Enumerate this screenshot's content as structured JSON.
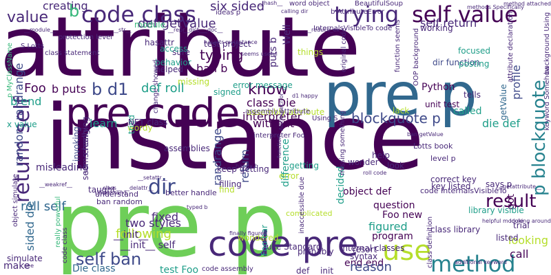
{
  "palette": {
    "purple": "#440154",
    "indigo": "#482878",
    "blue": "#3e4989",
    "slate": "#31688e",
    "teal": "#26828e",
    "aqua": "#1f9e89",
    "green": "#35b779",
    "lime": "#6ece58",
    "yellow": "#b5de2b"
  },
  "words": [
    {
      "text": "attribute",
      "color": "purple"
    },
    {
      "text": "instance",
      "color": "purple"
    },
    {
      "text": "pre p",
      "color": "lime"
    },
    {
      "text": "pre code",
      "color": "purple"
    },
    {
      "text": "pre p",
      "color": "slate"
    },
    {
      "text": "code class",
      "color": "indigo"
    },
    {
      "text": "self value",
      "color": "purple"
    },
    {
      "text": "trying",
      "color": "indigo"
    },
    {
      "text": "code pre",
      "color": "indigo"
    },
    {
      "text": "method",
      "color": "teal"
    },
    {
      "text": "use",
      "color": "yellow"
    },
    {
      "text": "p blockquote",
      "color": "teal"
    },
    {
      "text": "return self",
      "color": "indigo"
    },
    {
      "text": "dir",
      "color": "blue"
    },
    {
      "text": "result",
      "color": "purple"
    },
    {
      "text": "know",
      "color": "purple"
    },
    {
      "text": "self ban",
      "color": "blue"
    },
    {
      "text": "b d1",
      "color": "blue"
    },
    {
      "text": "def roll",
      "color": "aqua"
    },
    {
      "text": "six sided",
      "color": "indigo"
    },
    {
      "text": "value",
      "color": "indigo"
    },
    {
      "text": "creating",
      "color": "indigo"
    },
    {
      "text": "b",
      "color": "green"
    },
    {
      "text": "def getValue",
      "color": "indigo"
    },
    {
      "text": "typing",
      "color": "purple"
    },
    {
      "text": "ban b",
      "color": "purple"
    },
    {
      "text": "self return",
      "color": "indigo"
    },
    {
      "text": "Foo",
      "color": "purple"
    },
    {
      "text": "b puts",
      "color": "purple"
    },
    {
      "text": "b end",
      "color": "aqua"
    },
    {
      "text": "class Die",
      "color": "purple"
    },
    {
      "text": "blockquote p",
      "color": "blue"
    },
    {
      "text": "interpreter",
      "color": "purple"
    },
    {
      "text": "learn",
      "color": "aqua"
    },
    {
      "text": "without",
      "color": "purple"
    },
    {
      "text": "random randrange",
      "color": "blue"
    },
    {
      "text": "randrange",
      "color": "blue"
    },
    {
      "text": "return",
      "color": "blue"
    },
    {
      "text": "difference",
      "color": "aqua"
    },
    {
      "text": "roll self",
      "color": "slate"
    },
    {
      "text": "sided die",
      "color": "slate"
    },
    {
      "text": "fixed",
      "color": "indigo"
    },
    {
      "text": "following",
      "color": "yellow"
    },
    {
      "text": "two styles",
      "color": "indigo"
    },
    {
      "text": "question",
      "color": "purple"
    },
    {
      "text": "Foo new",
      "color": "purple"
    },
    {
      "text": "figured",
      "color": "aqua"
    },
    {
      "text": "program",
      "color": "purple"
    },
    {
      "text": "looking",
      "color": "yellow"
    },
    {
      "text": "call",
      "color": "purple"
    },
    {
      "text": "end end",
      "color": "purple"
    },
    {
      "text": "reason",
      "color": "blue"
    },
    {
      "text": "Die class",
      "color": "slate"
    },
    {
      "text": "test Foo",
      "color": "aqua"
    },
    {
      "text": "make",
      "color": "indigo"
    },
    {
      "text": "__init__ self",
      "color": "indigo"
    },
    {
      "text": "object def",
      "color": "purple"
    },
    {
      "text": "code InternalsVisibleTo",
      "color": "indigo"
    },
    {
      "text": "got",
      "color": "purple"
    },
    {
      "text": "profile",
      "color": "blue"
    },
    {
      "text": "Python",
      "color": "purple"
    },
    {
      "text": "unit test",
      "color": "purple"
    },
    {
      "text": "called",
      "color": "aqua"
    },
    {
      "text": "die def",
      "color": "aqua"
    },
    {
      "text": "test project",
      "color": "indigo"
    },
    {
      "text": "getValue",
      "color": "slate"
    },
    {
      "text": "dir function",
      "color": "blue"
    },
    {
      "text": "focused",
      "color": "aqua"
    },
    {
      "text": "posting",
      "color": "aqua"
    },
    {
      "text": "puts b",
      "color": "indigo"
    },
    {
      "text": "Well",
      "color": "indigo"
    },
    {
      "text": "sure",
      "color": "indigo"
    },
    {
      "text": "helped",
      "color": "indigo"
    },
    {
      "text": "behavior",
      "color": "aqua"
    },
    {
      "text": "access",
      "color": "aqua"
    },
    {
      "text": "module",
      "color": "green"
    },
    {
      "text": "hasattr",
      "color": "indigo"
    },
    {
      "text": "missing",
      "color": "yellow"
    },
    {
      "text": "error message",
      "color": "aqua"
    },
    {
      "text": "signed",
      "color": "aqua"
    },
    {
      "text": "assembly attribute",
      "color": "yellow"
    },
    {
      "text": "assemblies",
      "color": "indigo"
    },
    {
      "text": "keep getting",
      "color": "indigo"
    },
    {
      "text": "complicated",
      "color": "yellow"
    },
    {
      "text": "decided",
      "color": "aqua"
    },
    {
      "text": "getting",
      "color": "aqua"
    },
    {
      "text": "wonder",
      "color": "indigo"
    },
    {
      "text": "understand",
      "color": "indigo"
    },
    {
      "text": "ban random",
      "color": "indigo"
    },
    {
      "text": "better handle",
      "color": "indigo"
    },
    {
      "text": "wondered",
      "color": "yellow"
    },
    {
      "text": "use Standard",
      "color": "indigo"
    },
    {
      "text": "internal classes",
      "color": "indigo"
    },
    {
      "text": "syntax",
      "color": "indigo"
    },
    {
      "text": "class library",
      "color": "indigo"
    },
    {
      "text": "library visible",
      "color": "aqua"
    },
    {
      "text": "Lotts book",
      "color": "indigo"
    },
    {
      "text": "level p",
      "color": "indigo"
    },
    {
      "text": "correct key",
      "color": "indigo"
    },
    {
      "text": "key listed",
      "color": "indigo"
    },
    {
      "text": "says p",
      "color": "indigo"
    },
    {
      "text": "misleading",
      "color": "indigo"
    },
    {
      "text": "invoking",
      "color": "blue"
    },
    {
      "text": "changing",
      "color": "indigo"
    },
    {
      "text": "taught",
      "color": "indigo"
    },
    {
      "text": "simulate",
      "color": "indigo"
    },
    {
      "text": "wordy",
      "color": "yellow"
    },
    {
      "text": "tried",
      "color": "aqua"
    },
    {
      "text": "seems really",
      "color": "indigo"
    },
    {
      "text": "x value",
      "color": "aqua"
    },
    {
      "text": ".NET class",
      "color": "indigo"
    },
    {
      "text": "probably",
      "color": "indigo"
    },
    {
      "text": "trial",
      "color": "indigo"
    },
    {
      "text": "listed",
      "color": "indigo"
    },
    {
      "text": "things",
      "color": "yellow"
    },
    {
      "text": "working",
      "color": "indigo"
    },
    {
      "text": "lack",
      "color": "yellow"
    },
    {
      "text": "tells",
      "color": "indigo"
    },
    {
      "text": "find",
      "color": "yellow"
    },
    {
      "text": "filling",
      "color": "indigo"
    },
    {
      "text": "error",
      "color": "yellow"
    },
    {
      "text": "help",
      "color": "indigo"
    },
    {
      "text": "look",
      "color": "indigo"
    },
    {
      "text": "resort",
      "color": "indigo"
    },
    {
      "text": "ideas p",
      "color": "indigo"
    },
    {
      "text": "class statement",
      "color": "indigo"
    },
    {
      "text": "protection level",
      "color": "indigo"
    },
    {
      "text": "S Lotts",
      "color": "indigo"
    },
    {
      "text": "word object",
      "color": "indigo"
    },
    {
      "text": "BeautifulSoup",
      "color": "indigo"
    },
    {
      "text": "b AttributeError",
      "color": "indigo"
    },
    {
      "text": "InternalsVisibleTo code",
      "color": "indigo"
    },
    {
      "text": "original code",
      "color": "indigo"
    },
    {
      "text": "OOP background",
      "color": "indigo"
    },
    {
      "text": "attribute declaration",
      "color": "indigo"
    },
    {
      "text": "function seems",
      "color": "indigo"
    },
    {
      "text": "Using S",
      "color": "indigo"
    },
    {
      "text": "interpreter Foo",
      "color": "indigo"
    },
    {
      "text": "assembly attribute",
      "color": "indigo"
    },
    {
      "text": "missing something",
      "color": "indigo"
    },
    {
      "text": "Foo bar",
      "color": "aqua"
    },
    {
      "text": "inaccessible due",
      "color": "indigo"
    },
    {
      "text": "class definition",
      "color": "indigo"
    },
    {
      "text": "code class",
      "color": "indigo"
    },
    {
      "text": "really powerful",
      "color": "green"
    },
    {
      "text": "keyword Somehow",
      "color": "indigo"
    },
    {
      "text": "background Using",
      "color": "indigo"
    },
    {
      "text": "p MyClassName",
      "color": "green"
    },
    {
      "text": "object simulate",
      "color": "indigo"
    },
    {
      "text": "def __init__",
      "color": "indigo"
    },
    {
      "text": "code assembly",
      "color": "indigo"
    },
    {
      "text": "__module__",
      "color": "indigo"
    },
    {
      "text": "__hash__",
      "color": "indigo"
    },
    {
      "text": "__repr__",
      "color": "indigo"
    },
    {
      "text": "__dict__",
      "color": "indigo"
    },
    {
      "text": "__doc__",
      "color": "indigo"
    },
    {
      "text": "__str__",
      "color": "indigo"
    },
    {
      "text": "__class__",
      "color": "indigo"
    },
    {
      "text": "__delattr__",
      "color": "indigo"
    },
    {
      "text": "__reduce_ex__",
      "color": "indigo"
    },
    {
      "text": "__getattribute__",
      "color": "indigo"
    },
    {
      "text": "__weakref__",
      "color": "indigo"
    },
    {
      "text": "__setattr__",
      "color": "indigo"
    },
    {
      "text": "__init__",
      "color": "indigo"
    },
    {
      "text": "change showed",
      "color": "indigo"
    },
    {
      "text": "seems useful",
      "color": "indigo"
    },
    {
      "text": "finally figured",
      "color": "indigo"
    },
    {
      "text": "helpful module",
      "color": "indigo"
    },
    {
      "text": "additional keyword",
      "color": "indigo"
    },
    {
      "text": "calling dir",
      "color": "indigo"
    },
    {
      "text": "methods Specifically",
      "color": "indigo"
    },
    {
      "text": "method attached",
      "color": "indigo"
    },
    {
      "text": "hasattr myInstance",
      "color": "indigo"
    },
    {
      "text": "d1 happy",
      "color": "indigo"
    },
    {
      "text": "happy b",
      "color": "indigo"
    },
    {
      "text": "typed b",
      "color": "indigo"
    },
    {
      "text": "roll code",
      "color": "indigo"
    },
    {
      "text": "ban getValue",
      "color": "indigo"
    },
    {
      "text": "AttributeError",
      "color": "indigo"
    },
    {
      "text": "understand",
      "color": "indigo"
    },
    {
      "text": "see",
      "color": "indigo"
    },
    {
      "text": "looking around",
      "color": "indigo"
    },
    {
      "text": "function",
      "color": "indigo"
    }
  ]
}
